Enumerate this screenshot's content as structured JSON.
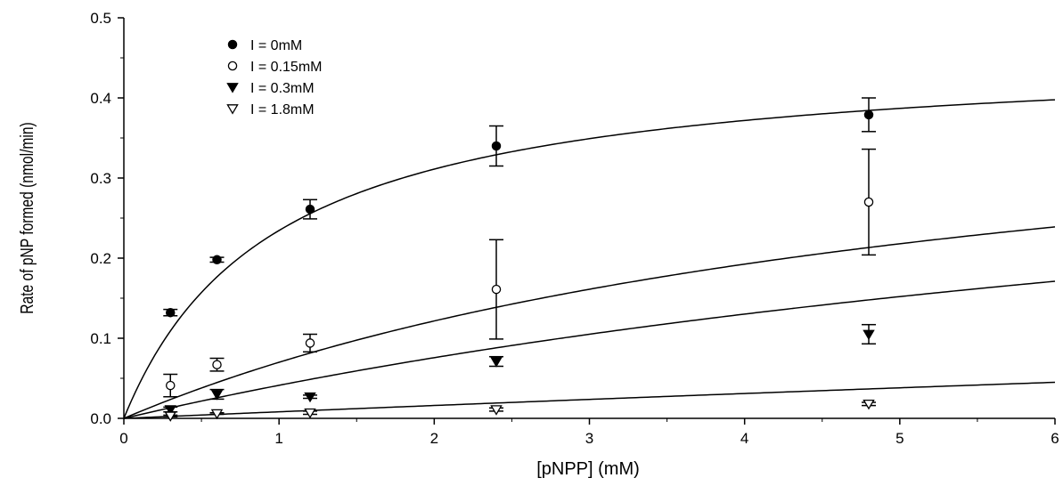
{
  "chart_data": {
    "type": "scatter",
    "xlabel": "[pNPP] (mM)",
    "ylabel": "Rate of pNP formed (nmol/min)",
    "xlim": [
      0,
      6
    ],
    "ylim": [
      0,
      0.5
    ],
    "x_ticks": [
      "0",
      "1",
      "2",
      "3",
      "4",
      "5",
      "6"
    ],
    "y_ticks": [
      "0.0",
      "0.1",
      "0.2",
      "0.3",
      "0.4",
      "0.5"
    ],
    "grid": false,
    "legend_position": "top-left",
    "x": [
      0.3,
      0.6,
      1.2,
      2.4,
      4.8
    ],
    "series": [
      {
        "name": "I = 0mM",
        "marker": "filled-circle",
        "values": [
          0.132,
          0.198,
          0.261,
          0.34,
          0.379
        ],
        "errors": [
          0.004,
          0.003,
          0.012,
          0.025,
          0.021
        ]
      },
      {
        "name": "I = 0.15mM",
        "marker": "open-circle",
        "values": [
          0.041,
          0.067,
          0.094,
          0.161,
          0.27
        ],
        "errors": [
          0.014,
          0.008,
          0.011,
          0.062,
          0.066
        ]
      },
      {
        "name": "I = 0.3mM",
        "marker": "filled-triangle-down",
        "values": [
          0.011,
          0.03,
          0.027,
          0.071,
          0.105
        ],
        "errors": [
          0.003,
          0.006,
          0.002,
          0.006,
          0.012
        ]
      },
      {
        "name": "I = 1.8mM",
        "marker": "open-triangle-down",
        "values": [
          0.003,
          0.006,
          0.007,
          0.011,
          0.018
        ],
        "errors": [
          0.001,
          0.001,
          0.002,
          0.002,
          0.002
        ]
      }
    ],
    "fits": [
      {
        "vmax": 0.462,
        "km": 0.97
      },
      {
        "vmax": 0.462,
        "km": 5.6
      },
      {
        "vmax": 0.462,
        "km": 10.2
      },
      {
        "vmax": 0.462,
        "km": 55.6
      }
    ]
  }
}
